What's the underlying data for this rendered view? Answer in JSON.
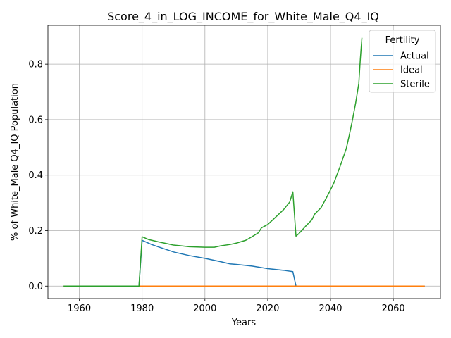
{
  "chart_data": {
    "type": "line",
    "title": "Score_4_in_LOG_INCOME_for_White_Male_Q4_IQ",
    "xlabel": "Years",
    "ylabel": "% of White_Male Q4_IQ Population",
    "xlim": [
      1950,
      2075
    ],
    "ylim": [
      -0.045,
      0.94
    ],
    "xticks": [
      1960,
      1980,
      2000,
      2020,
      2040,
      2060
    ],
    "yticks": [
      0.0,
      0.2,
      0.4,
      0.6,
      0.8
    ],
    "ytick_labels": [
      "0.0",
      "0.2",
      "0.4",
      "0.6",
      "0.8"
    ],
    "grid": true,
    "legend": {
      "title": "Fertility",
      "position": "top-right"
    },
    "series": [
      {
        "name": "Actual",
        "color": "#1f77b4",
        "points": [
          [
            1955,
            0
          ],
          [
            1979,
            0
          ],
          [
            1980,
            0.165
          ],
          [
            1983,
            0.15
          ],
          [
            1985,
            0.142
          ],
          [
            1990,
            0.123
          ],
          [
            1995,
            0.11
          ],
          [
            2000,
            0.1
          ],
          [
            2005,
            0.088
          ],
          [
            2008,
            0.08
          ],
          [
            2010,
            0.078
          ],
          [
            2015,
            0.072
          ],
          [
            2020,
            0.063
          ],
          [
            2025,
            0.057
          ],
          [
            2028,
            0.052
          ],
          [
            2029,
            0
          ],
          [
            2070,
            0
          ]
        ]
      },
      {
        "name": "Ideal",
        "color": "#ff7f0e",
        "points": [
          [
            1955,
            0
          ],
          [
            2070,
            0
          ]
        ]
      },
      {
        "name": "Sterile",
        "color": "#2ca02c",
        "points": [
          [
            1955,
            0
          ],
          [
            1979,
            0
          ],
          [
            1980,
            0.178
          ],
          [
            1982,
            0.168
          ],
          [
            1985,
            0.16
          ],
          [
            1990,
            0.148
          ],
          [
            1995,
            0.142
          ],
          [
            2000,
            0.14
          ],
          [
            2003,
            0.14
          ],
          [
            2005,
            0.145
          ],
          [
            2008,
            0.15
          ],
          [
            2010,
            0.155
          ],
          [
            2013,
            0.165
          ],
          [
            2015,
            0.178
          ],
          [
            2017,
            0.192
          ],
          [
            2018,
            0.21
          ],
          [
            2020,
            0.222
          ],
          [
            2022,
            0.243
          ],
          [
            2025,
            0.275
          ],
          [
            2027,
            0.303
          ],
          [
            2028,
            0.34
          ],
          [
            2029,
            0.18
          ],
          [
            2030,
            0.19
          ],
          [
            2032,
            0.215
          ],
          [
            2034,
            0.238
          ],
          [
            2035,
            0.26
          ],
          [
            2037,
            0.283
          ],
          [
            2039,
            0.325
          ],
          [
            2041,
            0.37
          ],
          [
            2043,
            0.43
          ],
          [
            2045,
            0.495
          ],
          [
            2046,
            0.545
          ],
          [
            2047,
            0.6
          ],
          [
            2048,
            0.66
          ],
          [
            2049,
            0.73
          ],
          [
            2049.5,
            0.82
          ],
          [
            2050,
            0.895
          ]
        ]
      }
    ]
  }
}
